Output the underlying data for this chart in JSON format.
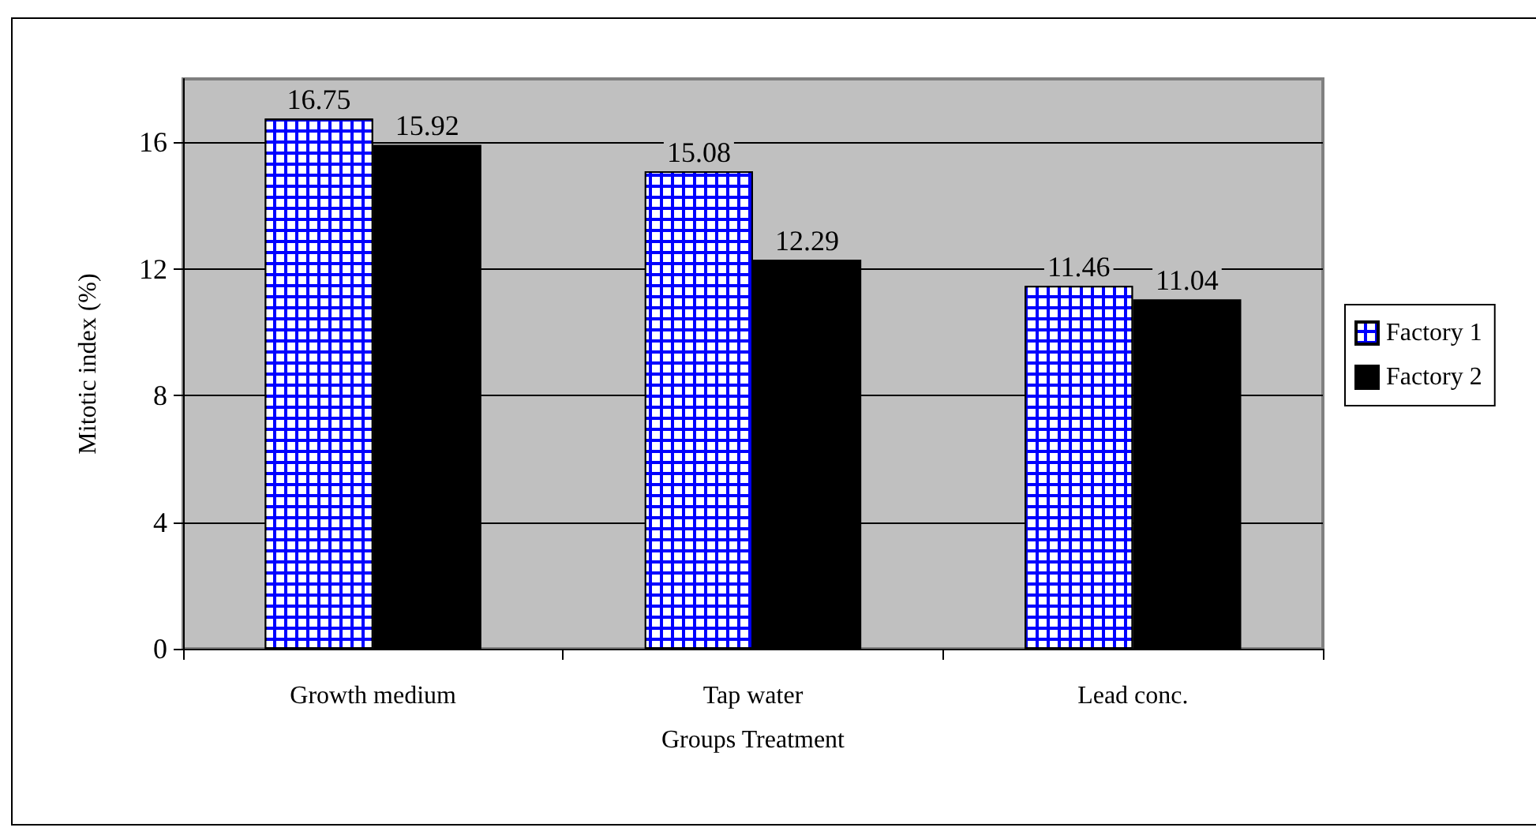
{
  "chart_data": {
    "type": "bar",
    "xlabel": "Groups Treatment",
    "ylabel": "Mitotic index (%)",
    "categories": [
      "Growth medium",
      "Tap water",
      "Lead conc."
    ],
    "series": [
      {
        "name": "Factory 1",
        "color": "#0000ff",
        "values": [
          16.75,
          15.08,
          11.46
        ]
      },
      {
        "name": "Factory 2",
        "color": "#000000",
        "values": [
          15.92,
          12.29,
          11.04
        ]
      }
    ],
    "ylim": [
      0,
      18
    ],
    "yticks": [
      0,
      4,
      8,
      12,
      16
    ],
    "grid": "y",
    "legend": "right",
    "data_labels": true
  }
}
